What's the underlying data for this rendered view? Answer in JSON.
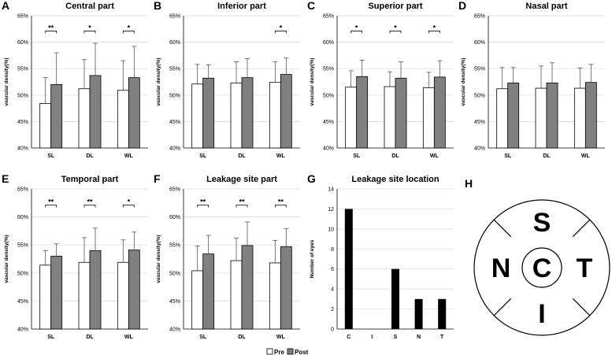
{
  "legend": {
    "pre": "Pre",
    "post": "Post"
  },
  "colors": {
    "pre": "#ffffff",
    "post": "#808080",
    "bar_stroke": "#000000",
    "count_bar": "#000000",
    "grid": "#d9d9d9"
  },
  "diagram": {
    "panel_letter": "H",
    "labels": {
      "superior": "S",
      "inferior": "I",
      "nasal": "N",
      "temporal": "T",
      "central": "C"
    }
  },
  "chart_data": [
    {
      "panel": "A",
      "type": "bar",
      "title": "Central part",
      "ylabel": "vascular density(%)",
      "ylim": [
        40,
        65
      ],
      "yticks": [
        "40%",
        "45%",
        "50%",
        "55%",
        "60%",
        "65%"
      ],
      "categories": [
        "SL",
        "DL",
        "WL"
      ],
      "series": [
        {
          "name": "Pre",
          "values": [
            48.4,
            51.2,
            50.9
          ],
          "errors": [
            4.9,
            5.5,
            5.6
          ]
        },
        {
          "name": "Post",
          "values": [
            52.0,
            53.7,
            53.3
          ],
          "errors": [
            6.0,
            6.1,
            5.9
          ]
        }
      ],
      "significance": [
        "**",
        "*",
        "*"
      ]
    },
    {
      "panel": "B",
      "type": "bar",
      "title": "Inferior part",
      "ylabel": "vascular density(%)",
      "ylim": [
        40,
        65
      ],
      "yticks": [
        "40%",
        "45%",
        "50%",
        "55%",
        "60%",
        "65%"
      ],
      "categories": [
        "SL",
        "DL",
        "WL"
      ],
      "series": [
        {
          "name": "Pre",
          "values": [
            52.1,
            52.3,
            52.4
          ],
          "errors": [
            3.7,
            4.0,
            3.9
          ]
        },
        {
          "name": "Post",
          "values": [
            53.2,
            53.3,
            53.9
          ],
          "errors": [
            2.5,
            3.6,
            3.1
          ]
        }
      ],
      "significance": [
        "",
        "",
        "*"
      ]
    },
    {
      "panel": "C",
      "type": "bar",
      "title": "Superior part",
      "ylabel": "vascular density(%)",
      "ylim": [
        40,
        65
      ],
      "yticks": [
        "40%",
        "45%",
        "50%",
        "55%",
        "60%",
        "65%"
      ],
      "categories": [
        "SL",
        "DL",
        "WL"
      ],
      "series": [
        {
          "name": "Pre",
          "values": [
            51.5,
            51.6,
            51.4
          ],
          "errors": [
            3.1,
            2.8,
            2.9
          ]
        },
        {
          "name": "Post",
          "values": [
            53.5,
            53.2,
            53.4
          ],
          "errors": [
            3.1,
            3.1,
            3.1
          ]
        }
      ],
      "significance": [
        "*",
        "*",
        "*"
      ]
    },
    {
      "panel": "D",
      "type": "bar",
      "title": "Nasal part",
      "ylabel": "vascular density(%)",
      "ylim": [
        40,
        65
      ],
      "yticks": [
        "40%",
        "45%",
        "50%",
        "55%",
        "60%",
        "65%"
      ],
      "categories": [
        "SL",
        "DL",
        "WL"
      ],
      "series": [
        {
          "name": "Pre",
          "values": [
            51.2,
            51.3,
            51.3
          ],
          "errors": [
            4.0,
            4.2,
            3.8
          ]
        },
        {
          "name": "Post",
          "values": [
            52.3,
            52.3,
            52.4
          ],
          "errors": [
            2.9,
            3.8,
            3.4
          ]
        }
      ],
      "significance": [
        "",
        "",
        ""
      ]
    },
    {
      "panel": "E",
      "type": "bar",
      "title": "Temporal part",
      "ylabel": "vascular density(%)",
      "ylim": [
        40,
        65
      ],
      "yticks": [
        "40%",
        "45%",
        "50%",
        "55%",
        "60%",
        "65%"
      ],
      "categories": [
        "SL",
        "DL",
        "WL"
      ],
      "series": [
        {
          "name": "Pre",
          "values": [
            51.4,
            51.9,
            51.9
          ],
          "errors": [
            2.6,
            4.4,
            4.0
          ]
        },
        {
          "name": "Post",
          "values": [
            53.0,
            54.0,
            54.1
          ],
          "errors": [
            2.2,
            4.0,
            3.2
          ]
        }
      ],
      "significance": [
        "**",
        "**",
        "*"
      ]
    },
    {
      "panel": "F",
      "type": "bar",
      "title": "Leakage site part",
      "ylabel": "vascular density(%)",
      "ylim": [
        40,
        65
      ],
      "yticks": [
        "40%",
        "45%",
        "50%",
        "55%",
        "60%",
        "65%"
      ],
      "categories": [
        "SL",
        "DL",
        "WL"
      ],
      "series": [
        {
          "name": "Pre",
          "values": [
            50.4,
            52.2,
            51.8
          ],
          "errors": [
            4.4,
            4.0,
            4.0
          ]
        },
        {
          "name": "Post",
          "values": [
            53.4,
            54.9,
            54.7
          ],
          "errors": [
            3.3,
            4.2,
            3.2
          ]
        }
      ],
      "significance": [
        "**",
        "**",
        "**"
      ]
    },
    {
      "panel": "G",
      "type": "bar",
      "title": "Leakage site location",
      "ylabel": "Number of eyes",
      "ylim": [
        0,
        14
      ],
      "yticks": [
        "0",
        "2",
        "4",
        "6",
        "8",
        "10",
        "12",
        "14"
      ],
      "categories": [
        "C",
        "I",
        "S",
        "N",
        "T"
      ],
      "values": [
        12,
        0,
        6,
        3,
        3
      ]
    }
  ]
}
